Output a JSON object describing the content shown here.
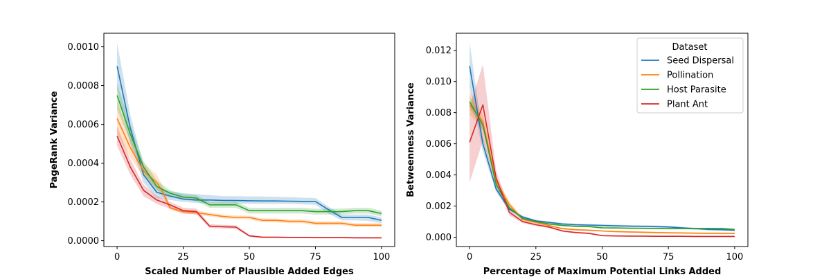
{
  "chart_data": [
    {
      "type": "line",
      "title": "",
      "xlabel": "Scaled Number of Plausible Added Edges",
      "ylabel": "PageRank Variance",
      "xlim": [
        -5,
        105
      ],
      "ylim": [
        -3e-05,
        0.00107
      ],
      "xticks": [
        0,
        25,
        50,
        75,
        100
      ],
      "xtick_labels": [
        "0",
        "25",
        "50",
        "75",
        "100"
      ],
      "yticks": [
        0,
        0.0002,
        0.0004,
        0.0006,
        0.0008,
        0.001
      ],
      "ytick_labels": [
        "0.0000",
        "0.0002",
        "0.0004",
        "0.0006",
        "0.0008",
        "0.0010"
      ],
      "legend": null,
      "series": [
        {
          "name": "Seed Dispersal",
          "color": "#1f77b4",
          "x": [
            0,
            5,
            10,
            15,
            20,
            25,
            30,
            35,
            40,
            45,
            50,
            55,
            60,
            65,
            70,
            75,
            80,
            85,
            90,
            95,
            100
          ],
          "y": [
            0.0009,
            0.00058,
            0.00034,
            0.00025,
            0.00023,
            0.000215,
            0.00021,
            0.00021,
            0.000208,
            0.000207,
            0.000206,
            0.000205,
            0.000205,
            0.000204,
            0.000203,
            0.000202,
            0.00016,
            0.00012,
            0.00012,
            0.00012,
            0.000105
          ],
          "lower": [
            0.00078,
            0.0005,
            0.0003,
            0.00022,
            0.00021,
            0.0002,
            0.000195,
            0.000192,
            0.00019,
            0.00019,
            0.00019,
            0.00019,
            0.00019,
            0.00019,
            0.000188,
            0.000185,
            0.00014,
            0.000105,
            0.000105,
            0.000102,
            9e-05
          ],
          "upper": [
            0.00102,
            0.00065,
            0.00039,
            0.00028,
            0.000255,
            0.000245,
            0.00024,
            0.000235,
            0.00023,
            0.00023,
            0.000228,
            0.000228,
            0.000226,
            0.000225,
            0.000222,
            0.00022,
            0.000175,
            0.000135,
            0.000135,
            0.000135,
            0.00012
          ]
        },
        {
          "name": "Pollination",
          "color": "#ff7f0e",
          "x": [
            0,
            5,
            10,
            15,
            17,
            20,
            25,
            30,
            35,
            40,
            45,
            50,
            55,
            60,
            65,
            70,
            75,
            80,
            85,
            90,
            95,
            100
          ],
          "y": [
            0.00063,
            0.00048,
            0.00036,
            0.0003,
            0.00026,
            0.00017,
            0.00015,
            0.000145,
            0.000135,
            0.000125,
            0.00012,
            0.00012,
            0.000105,
            0.000105,
            0.0001,
            0.0001,
            9e-05,
            9e-05,
            9e-05,
            8e-05,
            8e-05,
            8e-05
          ],
          "lower": [
            0.00055,
            0.00043,
            0.00033,
            0.00027,
            0.00023,
            0.00016,
            0.00014,
            0.000135,
            0.000125,
            0.000115,
            0.00011,
            0.00011,
            9.5e-05,
            9.5e-05,
            9e-05,
            9e-05,
            8e-05,
            8e-05,
            8e-05,
            7e-05,
            7e-05,
            7e-05
          ],
          "upper": [
            0.00072,
            0.00053,
            0.0004,
            0.00034,
            0.00029,
            0.00018,
            0.00016,
            0.000155,
            0.000145,
            0.000135,
            0.00013,
            0.00013,
            0.000115,
            0.000115,
            0.00011,
            0.00011,
            0.0001,
            0.0001,
            0.0001,
            9e-05,
            9e-05,
            9e-05
          ]
        },
        {
          "name": "Host Parasite",
          "color": "#2ca02c",
          "x": [
            0,
            5,
            10,
            15,
            20,
            25,
            30,
            35,
            40,
            45,
            50,
            55,
            60,
            65,
            70,
            75,
            80,
            85,
            90,
            95,
            100
          ],
          "y": [
            0.00075,
            0.00055,
            0.00038,
            0.00028,
            0.000245,
            0.000225,
            0.00022,
            0.000185,
            0.000185,
            0.000185,
            0.000155,
            0.000155,
            0.000155,
            0.000155,
            0.000155,
            0.00015,
            0.00015,
            0.00015,
            0.000155,
            0.000155,
            0.00014
          ],
          "lower": [
            0.00068,
            0.00051,
            0.00035,
            0.00026,
            0.00023,
            0.00021,
            0.000205,
            0.00017,
            0.00017,
            0.00017,
            0.00014,
            0.00014,
            0.00014,
            0.00014,
            0.00014,
            0.000135,
            0.000135,
            0.000135,
            0.00014,
            0.00014,
            0.000125
          ],
          "upper": [
            0.00081,
            0.0006,
            0.00041,
            0.00031,
            0.00026,
            0.00024,
            0.000235,
            0.0002,
            0.0002,
            0.0002,
            0.00017,
            0.00017,
            0.00017,
            0.00017,
            0.00017,
            0.000165,
            0.000165,
            0.000165,
            0.00017,
            0.00017,
            0.000155
          ]
        },
        {
          "name": "Plant Ant",
          "color": "#d62728",
          "x": [
            0,
            5,
            10,
            15,
            20,
            25,
            30,
            35,
            40,
            45,
            50,
            55,
            60,
            65,
            70,
            75,
            80,
            85,
            90,
            95,
            100
          ],
          "y": [
            0.00054,
            0.00038,
            0.00026,
            0.00021,
            0.000185,
            0.000155,
            0.00015,
            7.5e-05,
            7.2e-05,
            7e-05,
            2.5e-05,
            1.8e-05,
            1.8e-05,
            1.7e-05,
            1.7e-05,
            1.6e-05,
            1.6e-05,
            1.6e-05,
            1.5e-05,
            1.5e-05,
            1.5e-05
          ],
          "lower": [
            0.00049,
            0.00034,
            0.00023,
            0.00019,
            0.000165,
            0.00014,
            0.000135,
            6.5e-05,
            6.3e-05,
            6e-05,
            2e-05,
            1.4e-05,
            1.4e-05,
            1.3e-05,
            1.3e-05,
            1.2e-05,
            1.2e-05,
            1.2e-05,
            1.1e-05,
            1.1e-05,
            1.1e-05
          ],
          "upper": [
            0.00059,
            0.00042,
            0.00029,
            0.00023,
            0.0002,
            0.00017,
            0.000165,
            8.5e-05,
            8.2e-05,
            8e-05,
            3e-05,
            2.2e-05,
            2.2e-05,
            2.1e-05,
            2.1e-05,
            2e-05,
            2e-05,
            2e-05,
            1.9e-05,
            1.9e-05,
            1.9e-05
          ]
        }
      ]
    },
    {
      "type": "line",
      "title": "",
      "xlabel": "Percentage of Maximum Potential Links Added",
      "ylabel": "Betweenness Variance",
      "xlim": [
        -5,
        105
      ],
      "ylim": [
        -0.0006,
        0.0131
      ],
      "xticks": [
        0,
        25,
        50,
        75,
        100
      ],
      "xtick_labels": [
        "0",
        "25",
        "50",
        "75",
        "100"
      ],
      "yticks": [
        0,
        0.002,
        0.004,
        0.006,
        0.008,
        0.01,
        0.012
      ],
      "ytick_labels": [
        "0.000",
        "0.002",
        "0.004",
        "0.006",
        "0.008",
        "0.010",
        "0.012"
      ],
      "legend": {
        "title": "Dataset",
        "placement": "top-right",
        "entries": [
          "Seed Dispersal",
          "Pollination",
          "Host Parasite",
          "Plant Ant"
        ]
      },
      "series": [
        {
          "name": "Seed Dispersal",
          "color": "#1f77b4",
          "x": [
            0,
            5,
            10,
            15,
            20,
            25,
            30,
            35,
            40,
            45,
            50,
            55,
            60,
            65,
            70,
            75,
            80,
            85,
            90,
            95,
            100
          ],
          "y": [
            0.011,
            0.006,
            0.0031,
            0.0018,
            0.0013,
            0.00105,
            0.00095,
            0.00085,
            0.0008,
            0.00078,
            0.00075,
            0.00073,
            0.00071,
            0.0007,
            0.00068,
            0.00066,
            0.0006,
            0.00055,
            0.0005,
            0.00048,
            0.00045
          ],
          "lower": [
            0.0096,
            0.0055,
            0.0029,
            0.0017,
            0.00122,
            0.00098,
            0.00088,
            0.00078,
            0.00073,
            0.00071,
            0.00068,
            0.00066,
            0.00064,
            0.00063,
            0.00061,
            0.00059,
            0.00053,
            0.00048,
            0.00043,
            0.00041,
            0.00038
          ],
          "upper": [
            0.0125,
            0.0065,
            0.0033,
            0.0019,
            0.00138,
            0.00112,
            0.00102,
            0.00092,
            0.00087,
            0.00085,
            0.00082,
            0.0008,
            0.00078,
            0.00077,
            0.00075,
            0.00073,
            0.00067,
            0.00062,
            0.00057,
            0.00055,
            0.00052
          ]
        },
        {
          "name": "Pollination",
          "color": "#ff7f0e",
          "x": [
            0,
            5,
            10,
            15,
            20,
            25,
            30,
            35,
            40,
            45,
            50,
            55,
            60,
            65,
            70,
            75,
            80,
            85,
            90,
            95,
            100
          ],
          "y": [
            0.0085,
            0.0074,
            0.0036,
            0.0021,
            0.00115,
            0.00095,
            0.00075,
            0.00055,
            0.00048,
            0.00045,
            0.0004,
            0.00036,
            0.00034,
            0.00032,
            0.0003,
            0.00028,
            0.00027,
            0.00026,
            0.00025,
            0.00025,
            0.00024
          ],
          "lower": [
            0.0079,
            0.0069,
            0.0033,
            0.0019,
            0.00105,
            0.00087,
            0.00068,
            0.00049,
            0.00042,
            0.0004,
            0.00035,
            0.00031,
            0.00029,
            0.00027,
            0.00025,
            0.00023,
            0.00022,
            0.00021,
            0.0002,
            0.0002,
            0.00019
          ],
          "upper": [
            0.0094,
            0.0079,
            0.0039,
            0.0023,
            0.00125,
            0.00103,
            0.00082,
            0.00061,
            0.00054,
            0.0005,
            0.00045,
            0.00041,
            0.00039,
            0.00037,
            0.00035,
            0.00033,
            0.00032,
            0.00031,
            0.0003,
            0.0003,
            0.00029
          ]
        },
        {
          "name": "Host Parasite",
          "color": "#2ca02c",
          "x": [
            0,
            5,
            10,
            15,
            20,
            25,
            30,
            35,
            40,
            45,
            50,
            55,
            60,
            65,
            70,
            75,
            80,
            85,
            90,
            95,
            100
          ],
          "y": [
            0.0087,
            0.0072,
            0.0034,
            0.0019,
            0.0012,
            0.001,
            0.00085,
            0.00075,
            0.0007,
            0.00068,
            0.0006,
            0.00059,
            0.00058,
            0.00057,
            0.00056,
            0.00055,
            0.00055,
            0.00055,
            0.00056,
            0.00056,
            0.0005
          ],
          "lower": [
            0.0083,
            0.0069,
            0.0032,
            0.0018,
            0.00113,
            0.00094,
            0.0008,
            0.0007,
            0.00065,
            0.00063,
            0.00055,
            0.00054,
            0.00053,
            0.00052,
            0.00051,
            0.0005,
            0.0005,
            0.0005,
            0.00051,
            0.00051,
            0.00045
          ],
          "upper": [
            0.0091,
            0.0075,
            0.0036,
            0.002,
            0.00127,
            0.00106,
            0.0009,
            0.0008,
            0.00075,
            0.00073,
            0.00065,
            0.00064,
            0.00063,
            0.00062,
            0.00061,
            0.0006,
            0.0006,
            0.0006,
            0.00061,
            0.00061,
            0.00055
          ]
        },
        {
          "name": "Plant Ant",
          "color": "#d62728",
          "x": [
            0,
            5,
            10,
            15,
            20,
            25,
            30,
            35,
            40,
            45,
            50,
            55,
            60,
            65,
            70,
            75,
            80,
            85,
            90,
            95,
            100
          ],
          "y": [
            0.0061,
            0.0085,
            0.0038,
            0.0016,
            0.001,
            0.0008,
            0.00065,
            0.0004,
            0.0003,
            0.00025,
            0.0001,
            8e-05,
            7e-05,
            7e-05,
            6e-05,
            6e-05,
            6e-05,
            5e-05,
            5e-05,
            5e-05,
            5e-05
          ],
          "lower": [
            0.0035,
            0.0062,
            0.0033,
            0.0014,
            0.0009,
            0.00072,
            0.00058,
            0.00034,
            0.00025,
            0.0002,
            7e-05,
            5e-05,
            4e-05,
            4e-05,
            3e-05,
            3e-05,
            3e-05,
            2e-05,
            2e-05,
            2e-05,
            2e-05
          ],
          "upper": [
            0.0084,
            0.0111,
            0.0043,
            0.0018,
            0.0011,
            0.00088,
            0.00072,
            0.00046,
            0.00035,
            0.0003,
            0.00013,
            0.00011,
            0.0001,
            0.0001,
            9e-05,
            9e-05,
            9e-05,
            8e-05,
            8e-05,
            8e-05,
            8e-05
          ]
        }
      ]
    }
  ]
}
